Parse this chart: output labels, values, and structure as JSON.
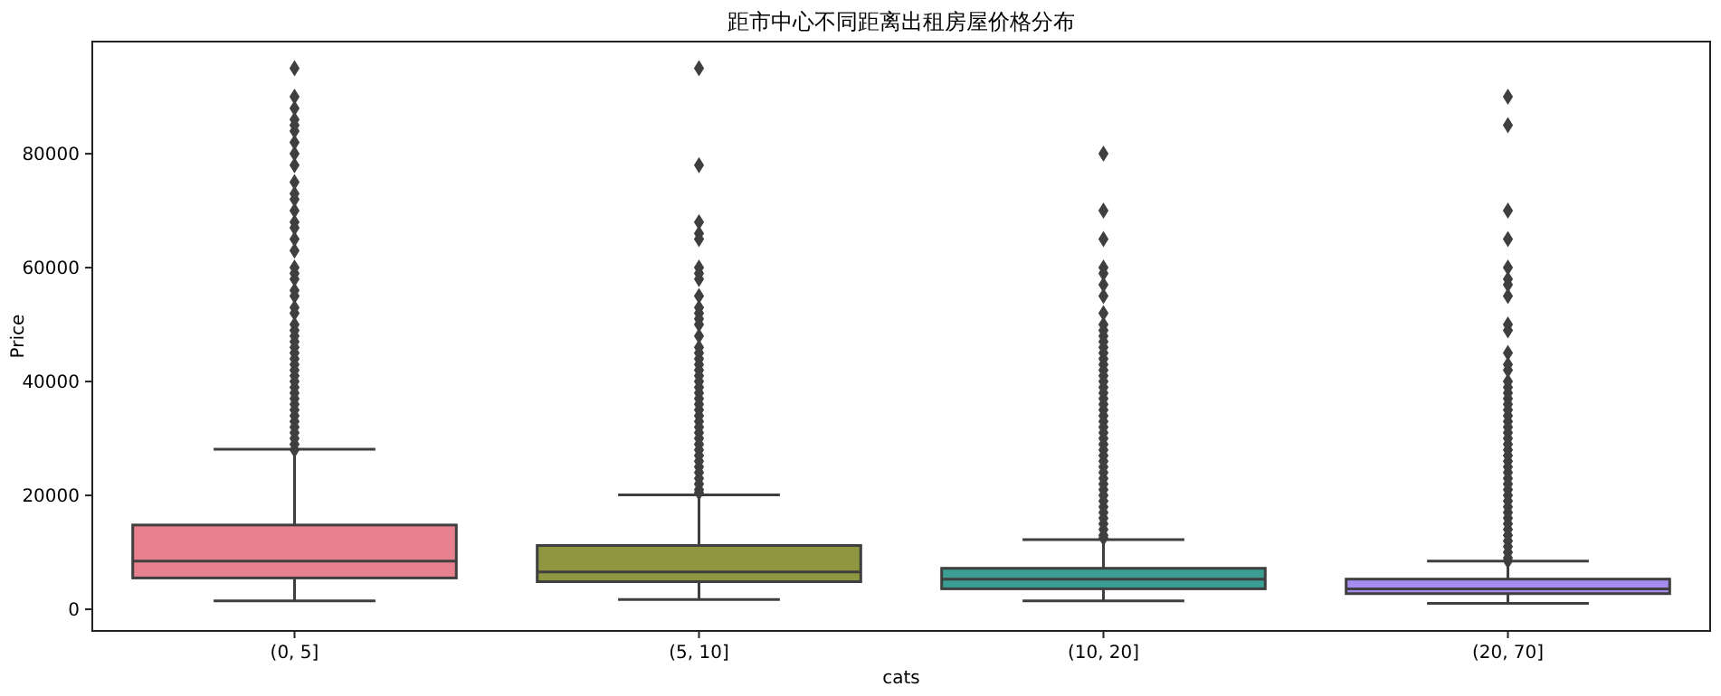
{
  "chart_data": {
    "type": "box",
    "title": "距市中心不同距离出租房屋价格分布",
    "xlabel": "cats",
    "ylabel": "Price",
    "categories": [
      "(0, 5]",
      "(5, 10]",
      "(10, 20]",
      "(20, 70]"
    ],
    "colors": [
      "#e7808f",
      "#8e973f",
      "#3a9e93",
      "#a68cef"
    ],
    "marker": "diamond",
    "ylim": [
      -3800,
      99700
    ],
    "yticks": [
      0,
      20000,
      40000,
      60000,
      80000
    ],
    "grid": false,
    "boxes": [
      {
        "low": 1470,
        "q1": 5500,
        "median": 8450,
        "q3": 14800,
        "high": 28100,
        "outliers": [
          28000,
          29000,
          30000,
          31000,
          32000,
          33000,
          34000,
          35000,
          36000,
          37000,
          38000,
          39000,
          40000,
          41000,
          42000,
          43000,
          44000,
          45000,
          46000,
          47000,
          48000,
          49000,
          50000,
          52000,
          53000,
          55000,
          56000,
          58000,
          59000,
          60000,
          63000,
          65000,
          67000,
          68000,
          70000,
          72000,
          73000,
          75000,
          78000,
          80000,
          82000,
          84000,
          85000,
          86000,
          88000,
          90000,
          95000
        ]
      },
      {
        "low": 1700,
        "q1": 4850,
        "median": 6550,
        "q3": 11200,
        "high": 20100,
        "outliers": [
          20500,
          21000,
          22000,
          23000,
          24000,
          25000,
          26000,
          27000,
          28000,
          29000,
          30000,
          31000,
          32000,
          33000,
          34000,
          35000,
          36000,
          37000,
          38000,
          39000,
          40000,
          41000,
          42000,
          43000,
          44000,
          45000,
          46000,
          48000,
          50000,
          51000,
          52000,
          53000,
          55000,
          58000,
          59000,
          60000,
          65000,
          66000,
          68000,
          78000,
          95000
        ]
      },
      {
        "low": 1470,
        "q1": 3600,
        "median": 5300,
        "q3": 7200,
        "high": 12250,
        "outliers": [
          12500,
          13000,
          14000,
          15000,
          16000,
          17000,
          18000,
          19000,
          20000,
          21000,
          22000,
          23000,
          24000,
          25000,
          26000,
          27000,
          28000,
          29000,
          30000,
          31000,
          32000,
          33000,
          34000,
          35000,
          36000,
          37000,
          38000,
          39000,
          40000,
          41000,
          42000,
          43000,
          44000,
          45000,
          46000,
          47000,
          48000,
          49000,
          50000,
          52000,
          55000,
          57000,
          59000,
          60000,
          65000,
          70000,
          80000
        ]
      },
      {
        "low": 1050,
        "q1": 2750,
        "median": 3600,
        "q3": 5300,
        "high": 8450,
        "outliers": [
          8500,
          9000,
          10000,
          11000,
          12000,
          13000,
          14000,
          15000,
          16000,
          17000,
          18000,
          19000,
          20000,
          21000,
          22000,
          23000,
          24000,
          25000,
          26000,
          27000,
          28000,
          29000,
          30000,
          31000,
          32000,
          33000,
          34000,
          35000,
          36000,
          37000,
          38000,
          39000,
          40000,
          42000,
          43000,
          45000,
          49000,
          50000,
          55000,
          57000,
          58000,
          60000,
          65000,
          70000,
          85000,
          90000
        ]
      }
    ]
  }
}
